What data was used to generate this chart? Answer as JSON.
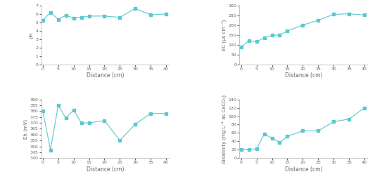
{
  "x": [
    0,
    2.5,
    5,
    7.5,
    10,
    12.5,
    15,
    20,
    25,
    30,
    35,
    40
  ],
  "pH": [
    5.25,
    6.2,
    5.35,
    5.85,
    5.5,
    5.6,
    5.75,
    5.75,
    5.6,
    6.65,
    5.9,
    6.0
  ],
  "EC": [
    88,
    120,
    115,
    135,
    148,
    150,
    170,
    200,
    225,
    255,
    258,
    252
  ],
  "Eh": [
    380,
    347,
    385,
    374,
    381,
    370,
    370,
    372,
    355,
    369,
    378,
    378
  ],
  "Alkalinity": [
    21,
    21,
    22,
    57,
    48,
    37,
    52,
    65,
    65,
    87,
    93,
    120
  ],
  "line_color": "#5bc8d0",
  "marker": "s",
  "markersize": 2.5,
  "linewidth": 0.8,
  "pH_ylabel": "pH",
  "EC_ylabel": "EC (μs cm⁻¹)",
  "Eh_ylabel": "Eh (mV)",
  "Alk_ylabel": "Alkalinity (mg L⁻¹ as CaCO₃)",
  "xlabel": "Distance (cm)",
  "pH_ylim": [
    0,
    7
  ],
  "EC_ylim": [
    0,
    300
  ],
  "Eh_ylim": [
    340,
    390
  ],
  "Alk_ylim": [
    0,
    140
  ],
  "pH_yticks": [
    0,
    1,
    2,
    3,
    4,
    5,
    6,
    7
  ],
  "EC_yticks": [
    0,
    50,
    100,
    150,
    200,
    250,
    300
  ],
  "Eh_yticks": [
    340,
    345,
    350,
    355,
    360,
    365,
    370,
    375,
    380,
    385,
    390
  ],
  "Alk_yticks": [
    0,
    20,
    40,
    60,
    80,
    100,
    120,
    140
  ],
  "xticks": [
    0,
    5,
    10,
    15,
    20,
    25,
    30,
    35,
    40
  ],
  "xlim": [
    -0.5,
    41
  ]
}
